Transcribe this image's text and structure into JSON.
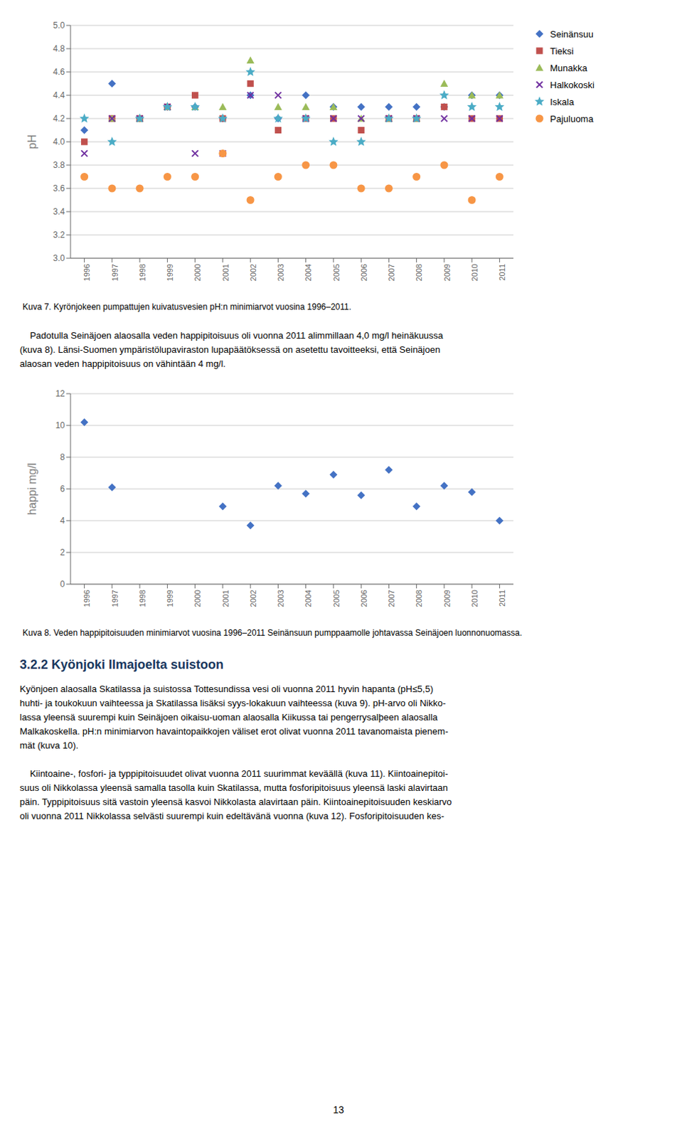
{
  "chart_data": [
    {
      "type": "scatter",
      "y_label": "pH",
      "xlim": [
        1995.5,
        2011.5
      ],
      "xticks": [
        1996,
        1997,
        1998,
        1999,
        2000,
        2001,
        2002,
        2003,
        2004,
        2005,
        2006,
        2007,
        2008,
        2009,
        2010,
        2011
      ],
      "ylim": [
        3.0,
        5.0
      ],
      "yticks": [
        {
          "value": 3.0,
          "label": "3.0"
        },
        3.2,
        3.4,
        3.6,
        3.8,
        {
          "value": 4.0,
          "label": "4.0"
        },
        4.2,
        4.4,
        4.6,
        4.8,
        {
          "value": 5.0,
          "label": "5.0"
        }
      ],
      "grid": true,
      "legend": "right",
      "series": [
        {
          "name": "Seinänsuu",
          "color": "#4472C4",
          "marker": "diamond",
          "x": [
            1996,
            1997,
            1998,
            1999,
            2000,
            2001,
            2002,
            2003,
            2004,
            2005,
            2006,
            2007,
            2008,
            2009,
            2010,
            2011
          ],
          "values": [
            4.1,
            4.5,
            4.2,
            4.3,
            4.3,
            4.2,
            4.4,
            4.2,
            4.4,
            4.3,
            4.3,
            4.3,
            4.3,
            4.3,
            4.4,
            4.4
          ]
        },
        {
          "name": "Tieksi",
          "color": "#C0504D",
          "marker": "square",
          "x": [
            1996,
            1997,
            1998,
            1999,
            2000,
            2001,
            2002,
            2003,
            2004,
            2005,
            2006,
            2007,
            2008,
            2009,
            2010,
            2011
          ],
          "values": [
            4.0,
            4.2,
            4.2,
            4.3,
            4.4,
            4.2,
            4.5,
            4.1,
            4.2,
            4.2,
            4.1,
            4.2,
            4.2,
            4.3,
            4.2,
            4.2
          ]
        },
        {
          "name": "Munakka",
          "color": "#9BBB59",
          "marker": "triangle",
          "x": [
            1997,
            1998,
            1999,
            2000,
            2001,
            2002,
            2003,
            2004,
            2005,
            2006,
            2007,
            2008,
            2009,
            2010,
            2011
          ],
          "values": [
            4.2,
            4.2,
            4.3,
            4.3,
            4.3,
            4.7,
            4.3,
            4.3,
            4.3,
            4.2,
            4.2,
            4.2,
            4.5,
            4.4,
            4.4
          ]
        },
        {
          "name": "Halkokoski",
          "color": "#7030A0",
          "marker": "x",
          "x": [
            1996,
            1997,
            1998,
            1999,
            2000,
            2001,
            2002,
            2003,
            2004,
            2005,
            2006,
            2007,
            2008,
            2009,
            2010,
            2011
          ],
          "values": [
            3.9,
            4.2,
            4.2,
            4.3,
            3.9,
            3.9,
            4.4,
            4.4,
            4.2,
            4.2,
            4.2,
            4.2,
            4.2,
            4.2,
            4.2,
            4.2
          ]
        },
        {
          "name": "Iskala",
          "color": "#4BACC6",
          "marker": "star",
          "x": [
            1996,
            1997,
            1998,
            1999,
            2000,
            2001,
            2002,
            2003,
            2004,
            2005,
            2006,
            2007,
            2008,
            2009,
            2010,
            2011
          ],
          "values": [
            4.2,
            4.0,
            4.2,
            4.3,
            4.3,
            4.2,
            4.6,
            4.2,
            4.2,
            4.0,
            4.0,
            4.2,
            4.2,
            4.4,
            4.3,
            4.3
          ]
        },
        {
          "name": "Pajuluoma",
          "color": "#F79646",
          "marker": "circle",
          "x": [
            1996,
            1997,
            1998,
            1999,
            2000,
            2001,
            2002,
            2003,
            2004,
            2005,
            2006,
            2007,
            2008,
            2009,
            2010,
            2011
          ],
          "values": [
            3.7,
            3.6,
            3.6,
            3.7,
            3.7,
            3.9,
            3.5,
            3.7,
            3.8,
            3.8,
            3.6,
            3.6,
            3.7,
            3.8,
            3.5,
            3.7
          ]
        }
      ],
      "annotations": [
        "Kuva 7. Kyrönjokeen pumpattujen kuivatusvesien pH:n minimiarvot vuosina 1996–2011."
      ]
    },
    {
      "type": "scatter",
      "y_label": "happi mg/l",
      "xlim": [
        1995.5,
        2011.5
      ],
      "xticks": [
        1996,
        1997,
        1998,
        1999,
        2000,
        2001,
        2002,
        2003,
        2004,
        2005,
        2006,
        2007,
        2008,
        2009,
        2010,
        2011
      ],
      "ylim": [
        0,
        12
      ],
      "yticks": [
        0,
        2,
        4,
        6,
        8,
        10,
        12
      ],
      "grid": true,
      "color": "#4472C4",
      "marker": "diamond",
      "x": [
        1996,
        1997,
        2001,
        2002,
        2003,
        2004,
        2005,
        2006,
        2007,
        2008,
        2009,
        2010,
        2011
      ],
      "values": [
        10.2,
        6.1,
        4.9,
        3.7,
        6.2,
        5.7,
        6.9,
        5.6,
        7.2,
        4.9,
        6.2,
        5.8,
        4.0
      ],
      "annotations": [
        "Kuva 8. Veden happipitoisuuden minimiarvot vuosina 1996–2011 Seinänsuun pumppaamolle johtavassa Seinäjoen luonnonuomassa."
      ]
    }
  ],
  "between_text": [
    "    Padotulla Seinäjoen alaosalla veden happipitoisuus oli vuonna 2011 alimmillaan 4,0 mg/l heinäkuussa",
    "(kuva 8). Länsi-Suomen ympäristölupaviraston lupapäätöksessä on asetettu tavoitteeksi, että Seinäjoen",
    "alaosan veden happipitoisuus on vähintään 4 mg/l."
  ],
  "section_heading": "3.2.2 Kyönjoki Ilmajoelta suistoon",
  "body_text": [
    [
      "Kyönjoen alaosalla Skatilassa ja suistossa Tottesundissa vesi oli vuonna 2011 hyvin hapanta (pH≤5,5)",
      "huhti- ja toukokuun vaihteessa ja Skatilassa lisäksi syys-lokakuun vaihteessa (kuva 9). pH-arvo oli Nikko-",
      "lassa yleensä suurempi kuin Seinäjoen oikaisu-uoman alaosalla Kiikussa tai pengerrysalþeen alaosalla",
      "Malkakoskella. pH:n minimiarvon havaintopaikkojen väliset erot olivat vuonna 2011 tavanomaista pienem-",
      "mät (kuva 10)."
    ],
    [
      "    Kiintoaine-, fosfori- ja typpipitoisuudet olivat vuonna 2011 suurimmat keväällä (kuva 11). Kiintoainepitoi-",
      "suus oli Nikkolassa yleensä samalla tasolla kuin Skatilassa, mutta fosforipitoisuus yleensä laski alavirtaan",
      "päin. Typpipitoisuus sitä vastoin yleensä kasvoi Nikkolasta alavirtaan päin. Kiintoainepitoisuuden keskiarvo",
      "oli vuonna 2011 Nikkolassa selvästi suurempi kuin edeltävänä vuonna (kuva 12). Fosforipitoisuuden kes-"
    ]
  ],
  "page_number": "13"
}
